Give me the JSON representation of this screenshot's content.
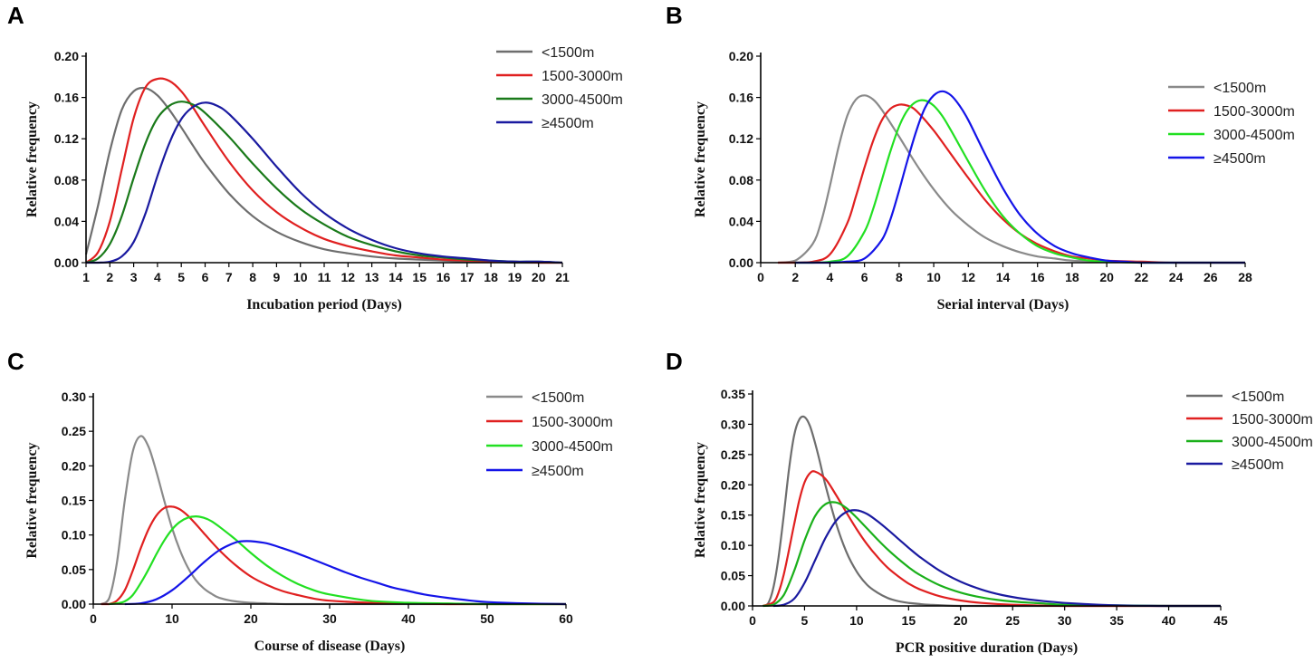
{
  "chart_data": [
    {
      "type": "line",
      "panel": "A",
      "xlabel": "Incubation period (Days)",
      "ylabel": "Relative frequency",
      "xlim": [
        1,
        21
      ],
      "ylim": [
        0,
        0.2
      ],
      "x_ticks": [
        1,
        2,
        3,
        4,
        5,
        6,
        7,
        8,
        9,
        10,
        11,
        12,
        13,
        14,
        15,
        16,
        17,
        18,
        19,
        20,
        21
      ],
      "y_ticks": [
        0,
        0.04,
        0.08,
        0.12,
        0.16,
        0.2
      ],
      "y_tick_labels": [
        "0.00",
        "0.04",
        "0.08",
        "0.12",
        "0.16",
        "0.20"
      ],
      "legend": "top-right",
      "series": [
        {
          "name": "<1500m",
          "color": "#6e6e6e",
          "x": [
            1,
            1.5,
            2,
            2.5,
            3,
            3.5,
            4,
            4.5,
            5,
            5.5,
            6,
            7,
            8,
            9,
            10,
            11,
            12,
            13,
            14,
            15,
            16,
            17,
            18,
            19,
            20,
            21
          ],
          "values": [
            0.008,
            0.055,
            0.108,
            0.148,
            0.166,
            0.169,
            0.162,
            0.148,
            0.131,
            0.113,
            0.096,
            0.067,
            0.045,
            0.03,
            0.02,
            0.013,
            0.009,
            0.006,
            0.004,
            0.003,
            0.002,
            0.001,
            0.001,
            0.0,
            0.0,
            0.0
          ]
        },
        {
          "name": "1500-3000m",
          "color": "#e02020",
          "x": [
            1,
            1.5,
            2,
            2.5,
            3,
            3.5,
            4,
            4.5,
            5,
            5.5,
            6,
            7,
            8,
            9,
            10,
            11,
            12,
            13,
            14,
            15,
            16,
            17,
            18,
            19,
            20,
            21
          ],
          "values": [
            0.0,
            0.01,
            0.04,
            0.09,
            0.14,
            0.17,
            0.178,
            0.176,
            0.166,
            0.15,
            0.132,
            0.098,
            0.07,
            0.049,
            0.034,
            0.023,
            0.016,
            0.011,
            0.007,
            0.005,
            0.003,
            0.002,
            0.001,
            0.001,
            0.0,
            0.0
          ]
        },
        {
          "name": "3000-4500m",
          "color": "#1a7a1a",
          "x": [
            1,
            1.5,
            2,
            2.5,
            3,
            3.5,
            4,
            4.5,
            5,
            5.5,
            6,
            7,
            8,
            9,
            10,
            11,
            12,
            13,
            14,
            15,
            16,
            17,
            18,
            19,
            20,
            21
          ],
          "values": [
            0.0,
            0.004,
            0.018,
            0.045,
            0.082,
            0.116,
            0.14,
            0.152,
            0.156,
            0.153,
            0.145,
            0.122,
            0.096,
            0.072,
            0.052,
            0.037,
            0.025,
            0.017,
            0.011,
            0.007,
            0.005,
            0.003,
            0.002,
            0.001,
            0.001,
            0.0
          ]
        },
        {
          "name": "≥4500m",
          "color": "#1a1aa0",
          "x": [
            1,
            1.5,
            2,
            2.5,
            3,
            3.5,
            4,
            4.5,
            5,
            5.5,
            6,
            6.5,
            7,
            8,
            9,
            10,
            11,
            12,
            13,
            14,
            15,
            16,
            17,
            18,
            19,
            20,
            21
          ],
          "values": [
            0.0,
            0.0,
            0.001,
            0.006,
            0.02,
            0.048,
            0.084,
            0.116,
            0.139,
            0.151,
            0.155,
            0.152,
            0.144,
            0.12,
            0.093,
            0.068,
            0.048,
            0.033,
            0.022,
            0.014,
            0.009,
            0.006,
            0.004,
            0.002,
            0.001,
            0.001,
            0.0
          ]
        }
      ]
    },
    {
      "type": "line",
      "panel": "B",
      "xlabel": "Serial interval (Days)",
      "ylabel": "Relative frequency",
      "xlim": [
        0,
        28
      ],
      "ylim": [
        0,
        0.2
      ],
      "x_ticks": [
        0,
        2,
        4,
        6,
        8,
        10,
        12,
        14,
        16,
        18,
        20,
        22,
        24,
        26,
        28
      ],
      "y_ticks": [
        0,
        0.04,
        0.08,
        0.12,
        0.16,
        0.2
      ],
      "y_tick_labels": [
        "0.00",
        "0.04",
        "0.08",
        "0.12",
        "0.16",
        "0.20"
      ],
      "legend": "top-right",
      "series": [
        {
          "name": "<1500m",
          "color": "#8a8a8a",
          "x": [
            1,
            2,
            3,
            3.5,
            4,
            4.5,
            5,
            5.5,
            6,
            6.5,
            7,
            8,
            9,
            10,
            11,
            12,
            13,
            14,
            15,
            16,
            17,
            18,
            20,
            22,
            24,
            28
          ],
          "values": [
            0.0,
            0.002,
            0.018,
            0.04,
            0.074,
            0.112,
            0.142,
            0.158,
            0.162,
            0.158,
            0.148,
            0.122,
            0.095,
            0.071,
            0.051,
            0.036,
            0.024,
            0.016,
            0.01,
            0.006,
            0.004,
            0.002,
            0.001,
            0.0,
            0.0,
            0.0
          ]
        },
        {
          "name": "1500-3000m",
          "color": "#e02020",
          "x": [
            1,
            2,
            3,
            4,
            5,
            5.5,
            6,
            6.5,
            7,
            7.5,
            8,
            8.5,
            9,
            10,
            11,
            12,
            13,
            14,
            15,
            16,
            17,
            18,
            19,
            20,
            22,
            24,
            28
          ],
          "values": [
            0.0,
            0.0,
            0.001,
            0.008,
            0.038,
            0.064,
            0.092,
            0.118,
            0.138,
            0.149,
            0.153,
            0.152,
            0.147,
            0.128,
            0.105,
            0.082,
            0.06,
            0.042,
            0.028,
            0.018,
            0.011,
            0.006,
            0.004,
            0.002,
            0.001,
            0.0,
            0.0
          ]
        },
        {
          "name": "3000-4500m",
          "color": "#22e022",
          "x": [
            2,
            3,
            4,
            5,
            6,
            6.5,
            7,
            7.5,
            8,
            8.5,
            9,
            9.5,
            10,
            10.5,
            11,
            12,
            13,
            14,
            15,
            16,
            17,
            18,
            19,
            20,
            22,
            24,
            28
          ],
          "values": [
            0.0,
            0.0,
            0.001,
            0.006,
            0.03,
            0.052,
            0.08,
            0.108,
            0.132,
            0.148,
            0.156,
            0.157,
            0.152,
            0.142,
            0.128,
            0.098,
            0.069,
            0.045,
            0.028,
            0.016,
            0.009,
            0.005,
            0.002,
            0.001,
            0.0,
            0.0,
            0.0
          ]
        },
        {
          "name": "≥4500m",
          "color": "#1414e8",
          "x": [
            2,
            4,
            5,
            6,
            7,
            7.5,
            8,
            8.5,
            9,
            9.5,
            10,
            10.5,
            11,
            11.5,
            12,
            13,
            14,
            15,
            16,
            17,
            18,
            19,
            20,
            21,
            22,
            24,
            28
          ],
          "values": [
            0.0,
            0.0,
            0.001,
            0.004,
            0.022,
            0.042,
            0.07,
            0.1,
            0.128,
            0.15,
            0.162,
            0.166,
            0.162,
            0.152,
            0.138,
            0.104,
            0.072,
            0.046,
            0.028,
            0.016,
            0.009,
            0.005,
            0.002,
            0.001,
            0.0,
            0.0,
            0.0
          ]
        }
      ]
    },
    {
      "type": "line",
      "panel": "C",
      "xlabel": "Course of disease (Days)",
      "ylabel": "Relative frequency",
      "xlim": [
        0,
        60
      ],
      "ylim": [
        0,
        0.3
      ],
      "x_ticks": [
        0,
        10,
        20,
        30,
        40,
        50,
        60
      ],
      "y_ticks": [
        0,
        0.05,
        0.1,
        0.15,
        0.2,
        0.25,
        0.3
      ],
      "y_tick_labels": [
        "0.00",
        "0.05",
        "0.10",
        "0.15",
        "0.20",
        "0.25",
        "0.30"
      ],
      "legend": "top-right",
      "series": [
        {
          "name": "<1500m",
          "color": "#8a8a8a",
          "x": [
            1,
            2,
            3,
            4,
            5,
            6,
            7,
            8,
            9,
            10,
            11,
            12,
            13,
            14,
            15,
            16,
            18,
            20,
            22,
            25,
            30,
            35,
            40,
            50,
            60
          ],
          "values": [
            0.0,
            0.008,
            0.06,
            0.15,
            0.22,
            0.243,
            0.228,
            0.192,
            0.15,
            0.11,
            0.078,
            0.053,
            0.035,
            0.023,
            0.015,
            0.009,
            0.004,
            0.002,
            0.001,
            0.0,
            0.0,
            0.0,
            0.0,
            0.0,
            0.0
          ]
        },
        {
          "name": "1500-3000m",
          "color": "#e02020",
          "x": [
            1,
            2,
            3,
            4,
            5,
            6,
            7,
            8,
            9,
            10,
            11,
            12,
            13,
            14,
            16,
            18,
            20,
            22,
            24,
            26,
            28,
            30,
            35,
            40,
            45,
            50,
            60
          ],
          "values": [
            0.0,
            0.0,
            0.005,
            0.02,
            0.048,
            0.08,
            0.108,
            0.128,
            0.139,
            0.141,
            0.137,
            0.128,
            0.116,
            0.103,
            0.078,
            0.057,
            0.04,
            0.028,
            0.019,
            0.013,
            0.008,
            0.005,
            0.002,
            0.001,
            0.0,
            0.0,
            0.0
          ]
        },
        {
          "name": "3000-4500m",
          "color": "#22e022",
          "x": [
            2,
            3,
            4,
            5,
            6,
            7,
            8,
            9,
            10,
            11,
            12,
            13,
            14,
            15,
            16,
            18,
            20,
            22,
            24,
            26,
            28,
            30,
            35,
            40,
            45,
            50,
            60
          ],
          "values": [
            0.0,
            0.001,
            0.004,
            0.013,
            0.03,
            0.05,
            0.072,
            0.092,
            0.108,
            0.119,
            0.125,
            0.127,
            0.125,
            0.12,
            0.112,
            0.094,
            0.074,
            0.056,
            0.041,
            0.029,
            0.02,
            0.014,
            0.005,
            0.002,
            0.001,
            0.0,
            0.0
          ]
        },
        {
          "name": "≥4500m",
          "color": "#1414e8",
          "x": [
            4,
            6,
            8,
            10,
            12,
            14,
            16,
            18,
            19,
            20,
            22,
            24,
            26,
            28,
            30,
            32,
            34,
            36,
            38,
            40,
            42,
            45,
            48,
            50,
            55,
            60
          ],
          "values": [
            0.0,
            0.001,
            0.007,
            0.02,
            0.039,
            0.06,
            0.078,
            0.089,
            0.091,
            0.091,
            0.088,
            0.081,
            0.073,
            0.064,
            0.055,
            0.046,
            0.038,
            0.031,
            0.024,
            0.019,
            0.014,
            0.009,
            0.005,
            0.003,
            0.001,
            0.0
          ]
        }
      ]
    },
    {
      "type": "line",
      "panel": "D",
      "xlabel": "PCR positive duration (Days)",
      "ylabel": "Relative frequency",
      "xlim": [
        0,
        45
      ],
      "ylim": [
        0,
        0.35
      ],
      "x_ticks": [
        0,
        5,
        10,
        15,
        20,
        25,
        30,
        35,
        40,
        45
      ],
      "y_ticks": [
        0,
        0.05,
        0.1,
        0.15,
        0.2,
        0.25,
        0.3,
        0.35
      ],
      "y_tick_labels": [
        "0.00",
        "0.05",
        "0.10",
        "0.15",
        "0.20",
        "0.25",
        "0.30",
        "0.35"
      ],
      "legend": "top-right",
      "series": [
        {
          "name": "<1500m",
          "color": "#6e6e6e",
          "x": [
            1,
            1.5,
            2,
            2.5,
            3,
            3.5,
            4,
            4.5,
            5,
            5.5,
            6,
            6.5,
            7,
            8,
            9,
            10,
            11,
            12,
            13,
            14,
            15,
            17,
            20,
            25,
            30,
            45
          ],
          "values": [
            0.0,
            0.004,
            0.03,
            0.08,
            0.15,
            0.225,
            0.282,
            0.308,
            0.312,
            0.298,
            0.27,
            0.236,
            0.2,
            0.138,
            0.09,
            0.057,
            0.035,
            0.022,
            0.013,
            0.008,
            0.005,
            0.002,
            0.0,
            0.0,
            0.0,
            0.0
          ]
        },
        {
          "name": "1500-3000m",
          "color": "#e02020",
          "x": [
            1,
            2,
            2.5,
            3,
            3.5,
            4,
            4.5,
            5,
            5.5,
            6,
            7,
            8,
            9,
            10,
            11,
            12,
            13,
            14,
            15,
            16,
            18,
            20,
            22,
            25,
            30,
            35,
            45
          ],
          "values": [
            0.0,
            0.006,
            0.022,
            0.052,
            0.092,
            0.135,
            0.175,
            0.204,
            0.219,
            0.222,
            0.21,
            0.184,
            0.155,
            0.127,
            0.102,
            0.081,
            0.063,
            0.049,
            0.037,
            0.028,
            0.016,
            0.009,
            0.005,
            0.002,
            0.0,
            0.0,
            0.0
          ]
        },
        {
          "name": "3000-4500m",
          "color": "#1ab01a",
          "x": [
            1,
            2,
            3,
            4,
            5,
            6,
            7,
            8,
            9,
            10,
            11,
            12,
            13,
            14,
            15,
            16,
            18,
            20,
            22,
            24,
            26,
            28,
            30,
            35,
            40,
            45
          ],
          "values": [
            0.0,
            0.002,
            0.018,
            0.058,
            0.108,
            0.148,
            0.168,
            0.171,
            0.162,
            0.146,
            0.128,
            0.11,
            0.093,
            0.078,
            0.064,
            0.052,
            0.034,
            0.022,
            0.014,
            0.009,
            0.006,
            0.004,
            0.002,
            0.001,
            0.0,
            0.0
          ]
        },
        {
          "name": "≥4500m",
          "color": "#1a1aa0",
          "x": [
            2,
            3,
            4,
            5,
            6,
            7,
            8,
            9,
            10,
            11,
            12,
            13,
            14,
            15,
            16,
            18,
            20,
            22,
            24,
            26,
            28,
            30,
            32,
            35,
            40,
            45
          ],
          "values": [
            0.0,
            0.002,
            0.012,
            0.038,
            0.075,
            0.112,
            0.14,
            0.155,
            0.158,
            0.152,
            0.14,
            0.126,
            0.111,
            0.096,
            0.082,
            0.058,
            0.04,
            0.027,
            0.018,
            0.012,
            0.008,
            0.005,
            0.003,
            0.001,
            0.0,
            0.0
          ]
        }
      ]
    }
  ]
}
